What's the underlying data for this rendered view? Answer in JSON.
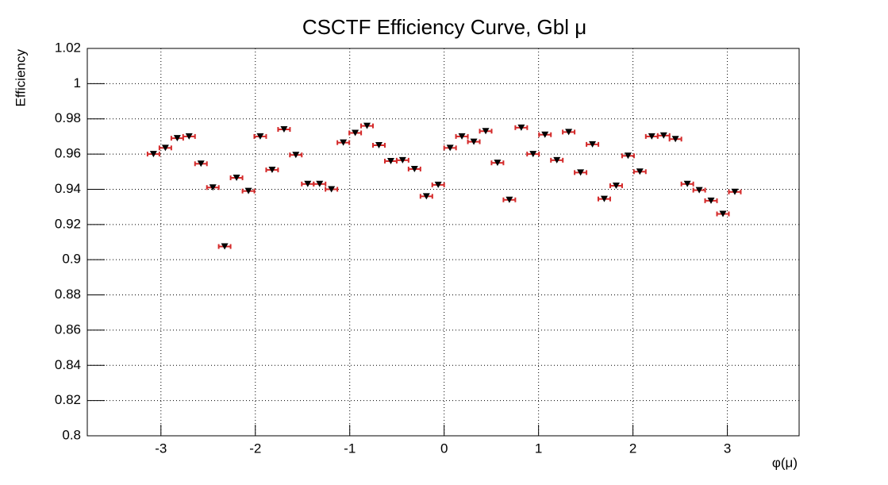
{
  "chart_data": {
    "type": "scatter",
    "title": "CSCTF Efficiency Curve, Gbl  μ",
    "x_label": "φ(μ)",
    "y_label": "Efficiency",
    "x": [
      -3.079,
      -2.953,
      -2.827,
      -2.702,
      -2.576,
      -2.45,
      -2.325,
      -2.199,
      -2.073,
      -1.948,
      -1.822,
      -1.696,
      -1.571,
      -1.445,
      -1.319,
      -1.194,
      -1.068,
      -0.942,
      -0.817,
      -0.691,
      -0.565,
      -0.44,
      -0.314,
      -0.188,
      -0.063,
      0.063,
      0.188,
      0.314,
      0.44,
      0.565,
      0.691,
      0.817,
      0.942,
      1.068,
      1.194,
      1.319,
      1.445,
      1.571,
      1.696,
      1.822,
      1.948,
      2.073,
      2.199,
      2.325,
      2.45,
      2.576,
      2.702,
      2.827,
      2.953,
      3.079
    ],
    "values": [
      0.96,
      0.9635,
      0.969,
      0.97,
      0.9545,
      0.941,
      0.9075,
      0.9465,
      0.939,
      0.97,
      0.951,
      0.974,
      0.9595,
      0.943,
      0.943,
      0.94,
      0.9665,
      0.972,
      0.976,
      0.965,
      0.956,
      0.9565,
      0.9515,
      0.936,
      0.9425,
      0.9635,
      0.97,
      0.967,
      0.973,
      0.955,
      0.934,
      0.975,
      0.96,
      0.971,
      0.9565,
      0.9725,
      0.9495,
      0.9655,
      0.9345,
      0.942,
      0.959,
      0.95,
      0.97,
      0.9705,
      0.9685,
      0.943,
      0.9395,
      0.9335,
      0.926,
      0.9385
    ],
    "xerr": 0.063,
    "color": "#000000",
    "error_color": "#d42a2a",
    "xlim": [
      -3.78,
      3.76
    ],
    "ylim": [
      0.8,
      1.02
    ],
    "xticks": [
      -3,
      -2,
      -1,
      0,
      1,
      2,
      3
    ],
    "yticks": [
      0.8,
      0.82,
      0.84,
      0.86,
      0.88,
      0.9,
      0.92,
      0.94,
      0.96,
      0.98,
      1,
      1.02
    ],
    "grid": true
  }
}
